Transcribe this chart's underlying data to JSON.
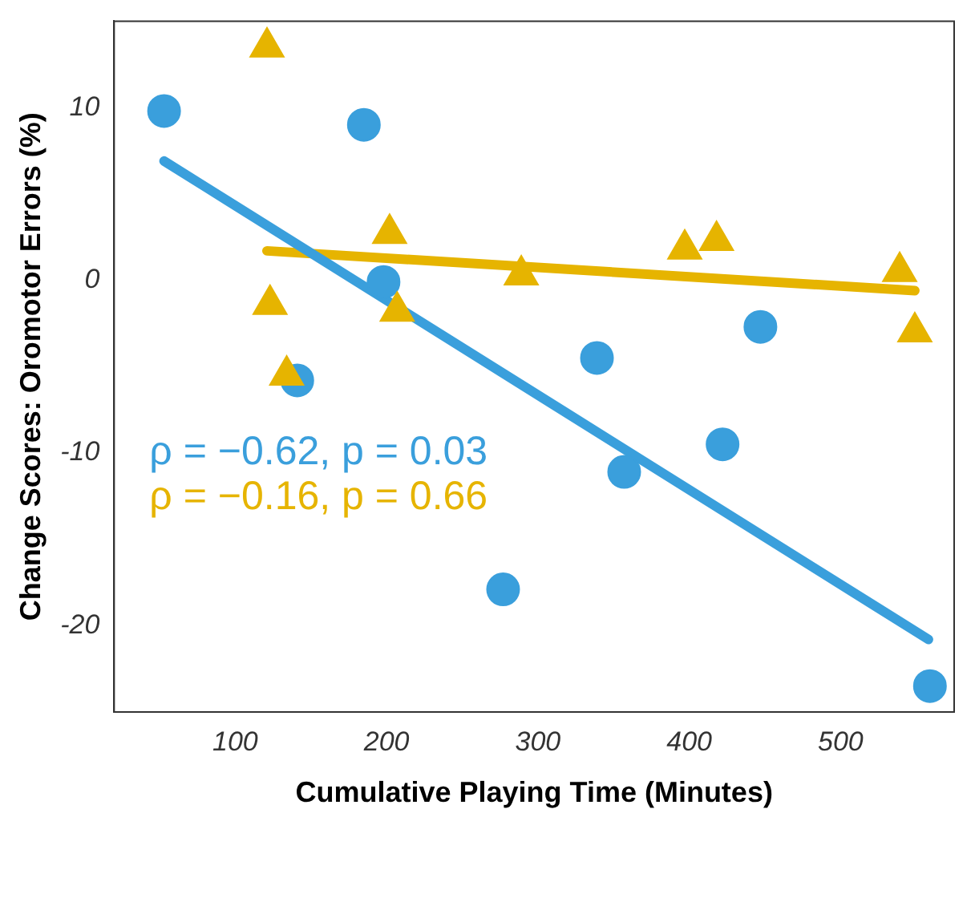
{
  "chart_data": {
    "type": "scatter",
    "xlabel": "Cumulative Playing Time (Minutes)",
    "ylabel": "Change Scores: Oromotor Errors (%)",
    "xlim": [
      20,
      575
    ],
    "xticks": [
      100,
      200,
      300,
      400,
      500
    ],
    "ylim": [
      -25,
      15
    ],
    "yticks": [
      -20,
      -10,
      0,
      10
    ],
    "grid": false,
    "legend": false,
    "series": [
      {
        "type": "scatter",
        "color": "#3a9fdc",
        "marker": "circle",
        "x": [
          53,
          141,
          185,
          198,
          277,
          339,
          357,
          422,
          447,
          559
        ],
        "values": [
          9.8,
          -5.8,
          9.0,
          -0.1,
          -17.9,
          -4.5,
          -11.1,
          -9.5,
          -2.7,
          -23.5
        ]
      },
      {
        "type": "scatter",
        "color": "#e6b400",
        "marker": "triangle",
        "x": [
          121,
          123,
          134,
          202,
          207,
          289,
          397,
          418,
          539,
          549
        ],
        "values": [
          13.5,
          -1.4,
          -5.5,
          2.7,
          -1.8,
          0.3,
          1.8,
          2.3,
          0.5,
          -3.0
        ]
      },
      {
        "type": "line",
        "color": "#3a9fdc",
        "marker": "none",
        "x": [
          53,
          558
        ],
        "values": [
          6.9,
          -20.8
        ]
      },
      {
        "type": "line",
        "color": "#e6b400",
        "marker": "none",
        "x": [
          121,
          549
        ],
        "values": [
          1.7,
          -0.6
        ]
      }
    ],
    "annotations": [
      "ρ = −0.62, p = 0.03",
      "ρ = −0.16, p = 0.66"
    ]
  }
}
